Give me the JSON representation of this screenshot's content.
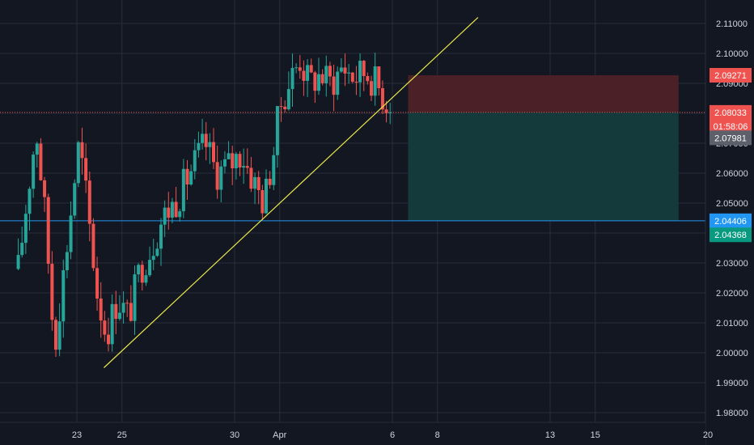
{
  "colors": {
    "background": "#131722",
    "grid": "#2a2e39",
    "axis_text": "#d1d4dc",
    "up": "#26a69a",
    "down": "#ef5350",
    "trendline": "#e8e84a",
    "hline": "#2196f3",
    "stop_zone": "#4b2127",
    "target_zone": "#143a3c",
    "price_line": "#ef5350"
  },
  "chart_data": {
    "type": "candlestick",
    "title": "",
    "xlabel": "",
    "ylabel": "",
    "ylim": [
      1.975,
      2.1155
    ],
    "y_ticks": [
      "1.98000",
      "1.99000",
      "2.00000",
      "2.01000",
      "2.02000",
      "2.03000",
      "2.04000",
      "2.05000",
      "2.06000",
      "2.07000",
      "2.08000",
      "2.09000",
      "2.10000",
      "2.11000"
    ],
    "x_ticks": [
      {
        "label": "23",
        "day": 23
      },
      {
        "label": "25",
        "day": 25
      },
      {
        "label": "30",
        "day": 30
      },
      {
        "label": "Apr",
        "day": 32
      },
      {
        "label": "6",
        "day": 37
      },
      {
        "label": "8",
        "day": 39
      },
      {
        "label": "13",
        "day": 44
      },
      {
        "label": "15",
        "day": 46
      },
      {
        "label": "20",
        "day": 51
      }
    ],
    "x_domain": [
      20.4,
      52.2
    ],
    "grid": true,
    "candles": [],
    "trendline": {
      "from": {
        "day": 24.2,
        "price": 1.995
      },
      "to": {
        "day": 40.8,
        "price": 2.112
      }
    },
    "support_line": {
      "price": 2.0441
    },
    "position": {
      "type": "short",
      "entry": 2.0803,
      "stop": 2.0927,
      "target": 2.0441,
      "start_day": 37.7,
      "end_day": 49.7
    },
    "price_labels": [
      {
        "text": "2.09271",
        "price": 2.0927,
        "color": "#ef5350"
      },
      {
        "text": "2.08033",
        "price": 2.0803,
        "color": "#ef5350"
      },
      {
        "text": "01:58:06",
        "price": 2.0757,
        "color": "#ef5350"
      },
      {
        "text": "2.07981",
        "price": 2.0718,
        "color": "#5d606b"
      },
      {
        "text": "2.04406",
        "price": 2.0441,
        "color": "#2196f3"
      },
      {
        "text": "2.04368",
        "price": 2.0394,
        "color": "#089981"
      }
    ]
  }
}
